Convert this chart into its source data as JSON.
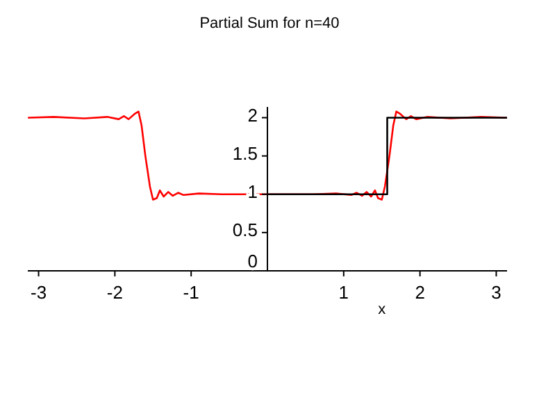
{
  "chart_data": {
    "type": "line",
    "title": "Partial Sum for n=40",
    "xlabel": "x",
    "xlim": [
      -3.1416,
      3.1416
    ],
    "ylim": [
      0,
      2.14
    ],
    "xticks": [
      -3,
      -2,
      -1,
      1,
      2,
      3
    ],
    "yticks": [
      0,
      0.5,
      1,
      1.5,
      2
    ],
    "grid": false,
    "marker": "none",
    "line_style": "solid",
    "series": [
      {
        "color": "#ff0000",
        "x": [
          -3.14,
          -2.8,
          -2.4,
          -2.1,
          -1.95,
          -1.88,
          -1.82,
          -1.74,
          -1.69,
          -1.65,
          -1.6,
          -1.54,
          -1.5,
          -1.45,
          -1.41,
          -1.36,
          -1.3,
          -1.24,
          -1.17,
          -1.1,
          -0.9,
          -0.6,
          -0.3,
          0,
          0.3,
          0.6,
          0.9,
          1.1,
          1.17,
          1.24,
          1.3,
          1.36,
          1.41,
          1.45,
          1.5,
          1.54,
          1.6,
          1.65,
          1.69,
          1.74,
          1.82,
          1.88,
          1.95,
          2.1,
          2.4,
          2.8,
          3.14
        ],
        "values": [
          2,
          2.01,
          1.99,
          2.01,
          1.98,
          2.02,
          1.98,
          2.05,
          2.08,
          1.9,
          1.5,
          1.1,
          0.93,
          0.95,
          1.05,
          0.97,
          1.03,
          0.98,
          1.02,
          0.99,
          1.01,
          1,
          1,
          1,
          1,
          1,
          1.01,
          0.99,
          1.02,
          0.98,
          1.03,
          0.97,
          1.05,
          0.95,
          0.93,
          1.1,
          1.5,
          1.9,
          2.08,
          2.05,
          1.98,
          2.02,
          1.98,
          2.01,
          1.99,
          2.01,
          2
        ]
      },
      {
        "color": "#000000",
        "x": [
          0,
          1.5708,
          1.5708,
          3.1416
        ],
        "values": [
          1,
          1,
          2,
          2
        ]
      }
    ]
  }
}
